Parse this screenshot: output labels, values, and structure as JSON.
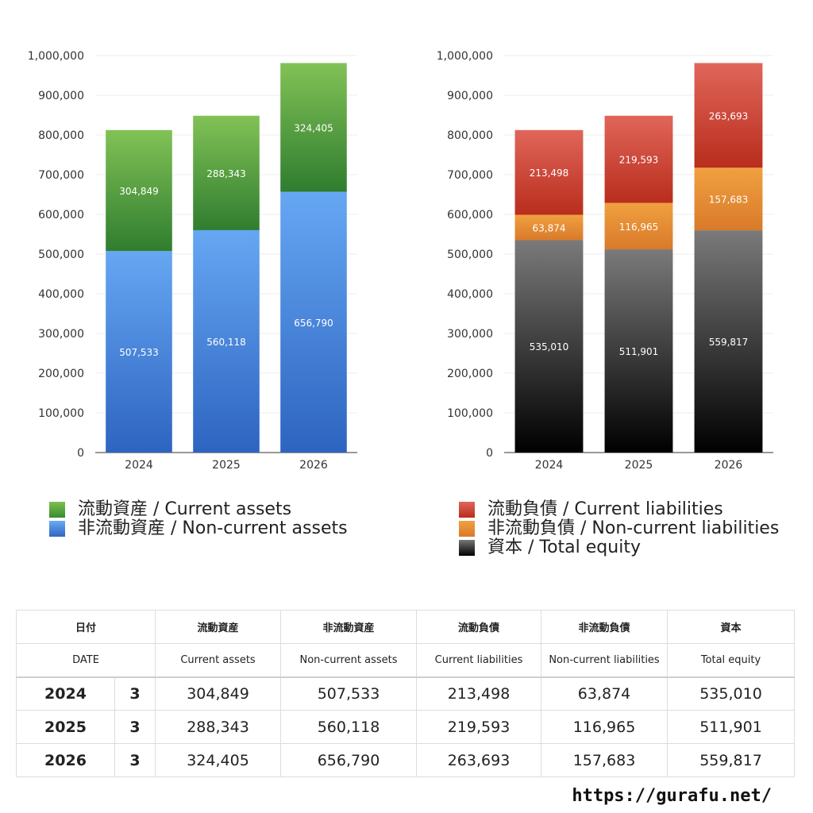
{
  "chart_data": [
    {
      "type": "bar",
      "stacked": true,
      "categories": [
        "2024",
        "2025",
        "2026"
      ],
      "ylim": [
        0,
        1000000
      ],
      "yticks": [
        "0",
        "100,000",
        "200,000",
        "300,000",
        "400,000",
        "500,000",
        "600,000",
        "700,000",
        "800,000",
        "900,000",
        "1,000,000"
      ],
      "series": [
        {
          "name": "非流動資産 / Non-current assets",
          "values": [
            507533,
            560118,
            656790
          ],
          "labels": [
            "507,533",
            "560,118",
            "656,790"
          ],
          "color_top": "#66a7f3",
          "color_bottom": "#2d64c0"
        },
        {
          "name": "流動資産 / Current assets",
          "values": [
            304849,
            288343,
            324405
          ],
          "labels": [
            "304,849",
            "288,343",
            "324,405"
          ],
          "color_top": "#82c256",
          "color_bottom": "#2f7d2f"
        }
      ],
      "legend": "bottom"
    },
    {
      "type": "bar",
      "stacked": true,
      "categories": [
        "2024",
        "2025",
        "2026"
      ],
      "ylim": [
        0,
        1000000
      ],
      "yticks": [
        "0",
        "100,000",
        "200,000",
        "300,000",
        "400,000",
        "500,000",
        "600,000",
        "700,000",
        "800,000",
        "900,000",
        "1,000,000"
      ],
      "series": [
        {
          "name": "資本 / Total equity",
          "values": [
            535010,
            511901,
            559817
          ],
          "labels": [
            "535,010",
            "511,901",
            "559,817"
          ],
          "color_top": "#7a7a7a",
          "color_bottom": "#000000"
        },
        {
          "name": "非流動負債 / Non-current liabilities",
          "values": [
            63874,
            116965,
            157683
          ],
          "labels": [
            "63,874",
            "116,965",
            "157,683"
          ],
          "color_top": "#f0a040",
          "color_bottom": "#d97a2a"
        },
        {
          "name": "流動負債 / Current liabilities",
          "values": [
            213498,
            219593,
            263693
          ],
          "labels": [
            "213,498",
            "219,593",
            "263,693"
          ],
          "color_top": "#e0665a",
          "color_bottom": "#b92d1c"
        }
      ],
      "legend": "bottom"
    }
  ],
  "legend_left": [
    {
      "label": "流動資産 / Current assets",
      "color_top": "#7cc050",
      "color_bottom": "#3a8a30"
    },
    {
      "label": "非流動資産 / Non-current assets",
      "color_top": "#6aaaf2",
      "color_bottom": "#2f66c2"
    }
  ],
  "legend_right": [
    {
      "label": "流動負債 / Current liabilities",
      "color_top": "#e0665a",
      "color_bottom": "#b92d1c"
    },
    {
      "label": "非流動負債 / Non-current liabilities",
      "color_top": "#f0a040",
      "color_bottom": "#d97a2a"
    },
    {
      "label": "資本 / Total equity",
      "color_top": "#777777",
      "color_bottom": "#000000"
    }
  ],
  "table": {
    "header_jp": [
      "日付",
      "流動資産",
      "非流動資産",
      "流動負債",
      "非流動負債",
      "資本"
    ],
    "header_en": [
      "DATE",
      "Current assets",
      "Non-current assets",
      "Current liabilities",
      "Non-current liabilities",
      "Total equity"
    ],
    "rows": [
      {
        "year": "2024",
        "month": "3",
        "values": [
          "304,849",
          "507,533",
          "213,498",
          "63,874",
          "535,010"
        ]
      },
      {
        "year": "2025",
        "month": "3",
        "values": [
          "288,343",
          "560,118",
          "219,593",
          "116,965",
          "511,901"
        ]
      },
      {
        "year": "2026",
        "month": "3",
        "values": [
          "324,405",
          "656,790",
          "263,693",
          "157,683",
          "559,817"
        ]
      }
    ]
  },
  "site_url": "https://gurafu.net/"
}
